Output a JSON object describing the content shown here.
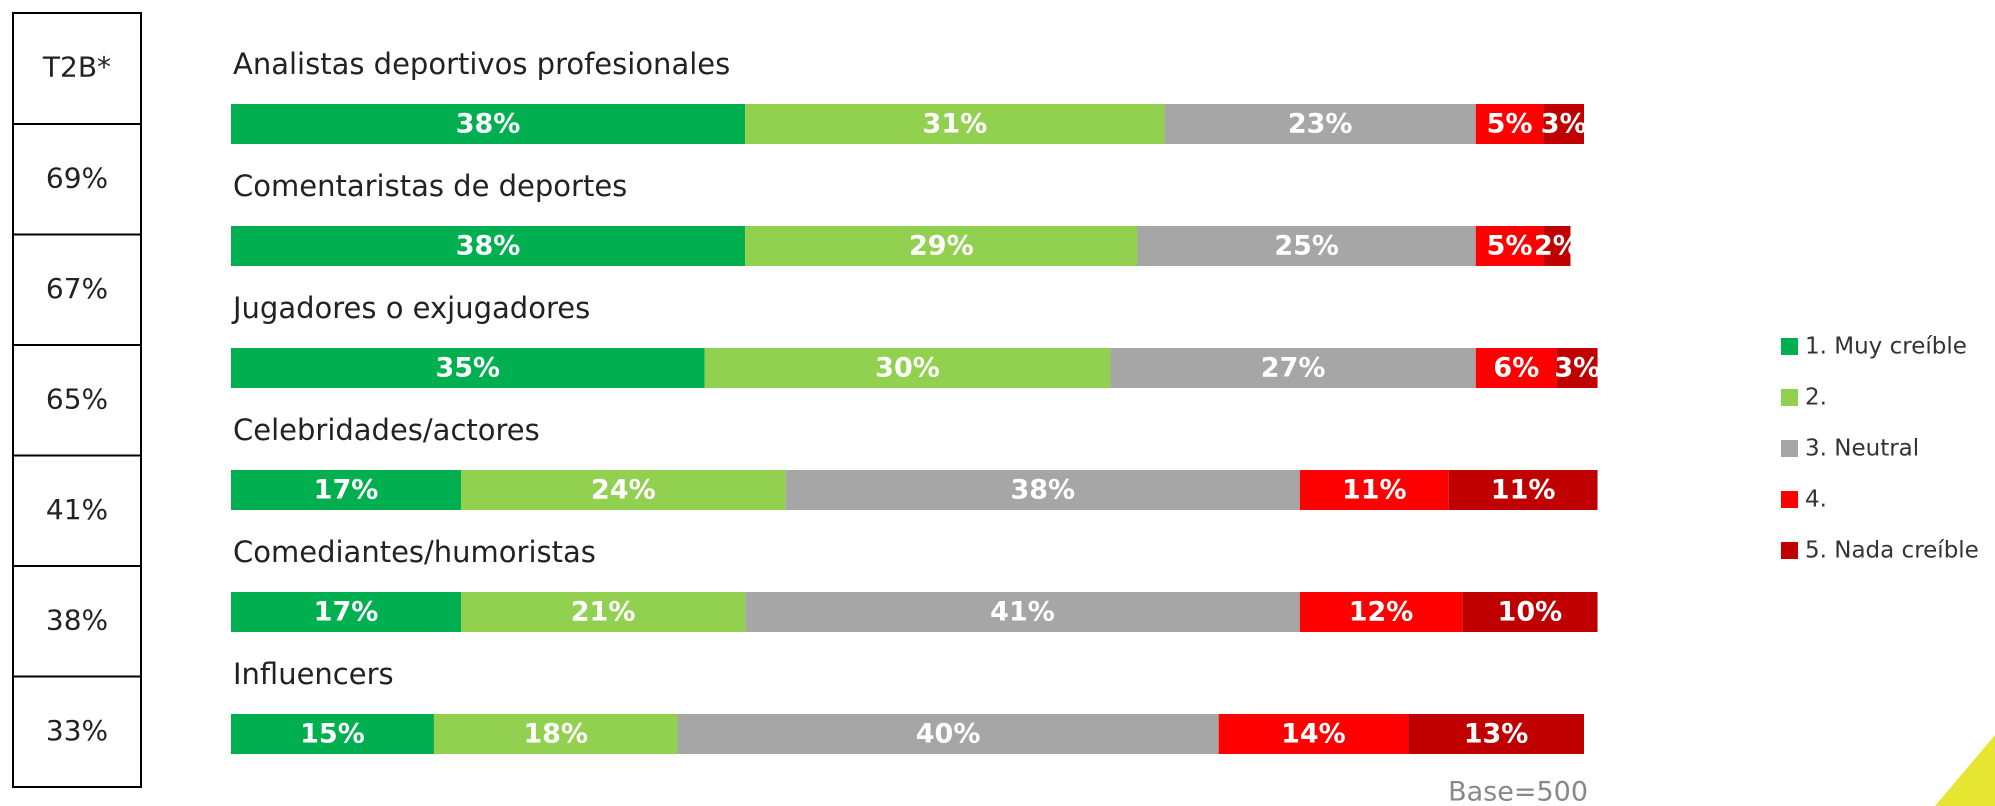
{
  "chart_data": {
    "type": "stacked-bar-horizontal",
    "categories": [
      "Analistas deportivos profesionales",
      "Comentaristas de deportes",
      "Jugadores o exjugadores",
      "Celebridades/actores",
      "Comediantes/humoristas",
      "Influencers"
    ],
    "series": [
      {
        "name": "1. Muy creíble",
        "color": "#00b050",
        "values": [
          38,
          38,
          35,
          17,
          17,
          15
        ],
        "value_labels": [
          "38%",
          "38%",
          "35%",
          "17%",
          "17%",
          "15%"
        ]
      },
      {
        "name": "2.",
        "color": "#92d050",
        "values": [
          31,
          29,
          30,
          24,
          21,
          18
        ],
        "value_labels": [
          "31%",
          "29%",
          "30%",
          "24%",
          "21%",
          "18%"
        ]
      },
      {
        "name": "3. Neutral",
        "color": "#a6a6a6",
        "values": [
          23,
          25,
          27,
          38,
          41,
          40
        ],
        "value_labels": [
          "23%",
          "25%",
          "27%",
          "38%",
          "41%",
          "40%"
        ]
      },
      {
        "name": "4.",
        "color": "#ff0000",
        "values": [
          5,
          5,
          6,
          11,
          12,
          14
        ],
        "value_labels": [
          "5%",
          "5%",
          "6%",
          "11%",
          "12%",
          "14%"
        ]
      },
      {
        "name": "5. Nada creíble",
        "color": "#c00000",
        "values": [
          3,
          2,
          3,
          11,
          10,
          13
        ],
        "value_labels": [
          "3%",
          "2%",
          "3%",
          "11%",
          "10%",
          "13%"
        ]
      }
    ],
    "xlim": [
      0,
      100
    ],
    "legend": "right",
    "t2b": {
      "title": "T2B*",
      "values": [
        69,
        67,
        65,
        41,
        38,
        33
      ],
      "value_labels": [
        "69%",
        "67%",
        "65%",
        "41%",
        "38%",
        "33%"
      ]
    },
    "annotation": "Base=500"
  }
}
